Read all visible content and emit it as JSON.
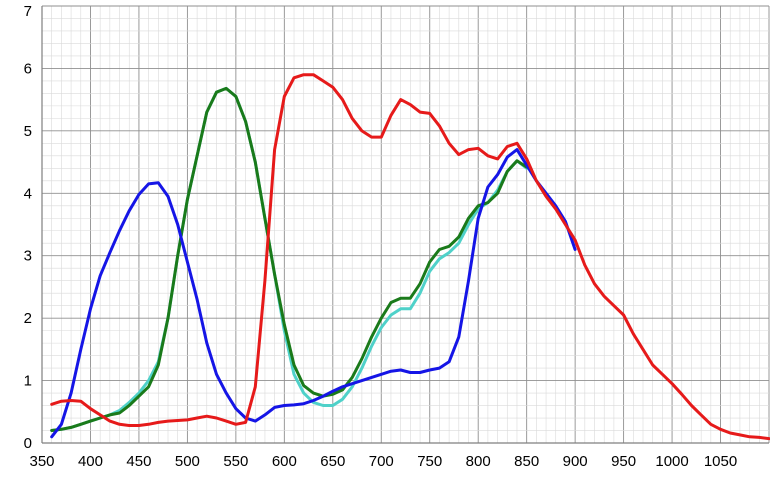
{
  "chart_data": {
    "type": "line",
    "title": "",
    "xlabel": "",
    "ylabel": "",
    "xlim": [
      350,
      1100
    ],
    "ylim": [
      0,
      7
    ],
    "x_ticks": [
      350,
      400,
      450,
      500,
      550,
      600,
      650,
      700,
      750,
      800,
      850,
      900,
      950,
      1000,
      1050
    ],
    "x_tick_labels": [
      "350",
      "400",
      "450",
      "500",
      "550",
      "600",
      "650",
      "700",
      "750",
      "800",
      "850",
      "900",
      "950",
      "1000",
      "1050"
    ],
    "y_ticks": [
      0,
      1,
      2,
      3,
      4,
      5,
      6,
      7
    ],
    "y_tick_labels": [
      "0",
      "1",
      "2",
      "3",
      "4",
      "5",
      "6",
      "7"
    ],
    "grid": true,
    "legend": "none",
    "colors": {
      "blue": "#1515e6",
      "green": "#1a7a1a",
      "cyan": "#4fd1c9",
      "red": "#e61a1a"
    },
    "series": [
      {
        "color": "cyan",
        "x": [
          360,
          370,
          380,
          390,
          400,
          410,
          420,
          430,
          440,
          450,
          460,
          470,
          480,
          490,
          500,
          510,
          520,
          530,
          540,
          550,
          560,
          570,
          580,
          590,
          600,
          610,
          620,
          630,
          640,
          650,
          660,
          670,
          680,
          690,
          700,
          710,
          720,
          730,
          740,
          750,
          760,
          770,
          780,
          790,
          800,
          810,
          820,
          830,
          840,
          850
        ],
        "y": [
          0.2,
          0.22,
          0.25,
          0.3,
          0.35,
          0.4,
          0.45,
          0.52,
          0.65,
          0.8,
          1.0,
          1.3,
          2.0,
          3.0,
          3.9,
          4.6,
          5.3,
          5.62,
          5.68,
          5.55,
          5.15,
          4.5,
          3.6,
          2.7,
          1.8,
          1.1,
          0.8,
          0.65,
          0.6,
          0.6,
          0.7,
          0.9,
          1.2,
          1.55,
          1.85,
          2.05,
          2.15,
          2.15,
          2.4,
          2.75,
          2.95,
          3.05,
          3.2,
          3.5,
          3.75,
          3.85,
          4.05,
          4.35,
          4.52,
          4.4
        ]
      },
      {
        "color": "green",
        "x": [
          360,
          370,
          380,
          390,
          400,
          410,
          420,
          430,
          440,
          450,
          460,
          470,
          480,
          490,
          500,
          510,
          520,
          530,
          540,
          550,
          560,
          570,
          580,
          590,
          600,
          610,
          620,
          630,
          640,
          650,
          660,
          670,
          680,
          690,
          700,
          710,
          720,
          730,
          740,
          750,
          760,
          770,
          780,
          790,
          800,
          810,
          820,
          830,
          840,
          850
        ],
        "y": [
          0.2,
          0.22,
          0.25,
          0.3,
          0.35,
          0.4,
          0.45,
          0.48,
          0.6,
          0.75,
          0.9,
          1.25,
          2.0,
          3.0,
          3.9,
          4.6,
          5.3,
          5.62,
          5.68,
          5.55,
          5.15,
          4.5,
          3.6,
          2.7,
          1.9,
          1.25,
          0.92,
          0.8,
          0.75,
          0.78,
          0.85,
          1.05,
          1.35,
          1.7,
          2.0,
          2.25,
          2.32,
          2.32,
          2.55,
          2.9,
          3.1,
          3.15,
          3.3,
          3.6,
          3.8,
          3.85,
          4.0,
          4.35,
          4.52,
          4.42
        ]
      },
      {
        "color": "blue",
        "x": [
          360,
          370,
          380,
          390,
          400,
          410,
          420,
          430,
          440,
          450,
          460,
          470,
          480,
          490,
          500,
          510,
          520,
          530,
          540,
          550,
          560,
          570,
          580,
          590,
          600,
          610,
          620,
          630,
          640,
          650,
          660,
          670,
          680,
          690,
          700,
          710,
          720,
          730,
          740,
          750,
          760,
          770,
          780,
          790,
          800,
          810,
          820,
          830,
          840,
          850,
          860,
          870,
          880,
          890,
          900
        ],
        "y": [
          0.1,
          0.3,
          0.8,
          1.5,
          2.15,
          2.68,
          3.05,
          3.4,
          3.72,
          3.98,
          4.15,
          4.17,
          3.95,
          3.5,
          2.9,
          2.3,
          1.6,
          1.1,
          0.8,
          0.55,
          0.4,
          0.35,
          0.45,
          0.57,
          0.6,
          0.61,
          0.63,
          0.68,
          0.75,
          0.83,
          0.9,
          0.95,
          1.0,
          1.05,
          1.1,
          1.15,
          1.17,
          1.13,
          1.13,
          1.17,
          1.2,
          1.3,
          1.7,
          2.6,
          3.6,
          4.1,
          4.3,
          4.58,
          4.7,
          4.45,
          4.2,
          4.0,
          3.8,
          3.55,
          3.1
        ]
      },
      {
        "color": "red",
        "x": [
          360,
          370,
          380,
          390,
          400,
          410,
          420,
          430,
          440,
          450,
          460,
          470,
          480,
          490,
          500,
          510,
          520,
          530,
          540,
          550,
          560,
          570,
          580,
          590,
          600,
          610,
          620,
          630,
          640,
          650,
          660,
          670,
          680,
          690,
          700,
          710,
          720,
          730,
          740,
          750,
          760,
          770,
          780,
          790,
          800,
          810,
          820,
          830,
          840,
          850,
          860,
          870,
          880,
          890,
          900,
          910,
          920,
          930,
          940,
          950,
          960,
          970,
          980,
          990,
          1000,
          1010,
          1020,
          1030,
          1040,
          1050,
          1060,
          1070,
          1080,
          1090,
          1100
        ],
        "y": [
          0.62,
          0.67,
          0.68,
          0.67,
          0.55,
          0.45,
          0.35,
          0.3,
          0.28,
          0.28,
          0.3,
          0.33,
          0.35,
          0.36,
          0.37,
          0.4,
          0.43,
          0.4,
          0.35,
          0.3,
          0.33,
          0.9,
          2.6,
          4.7,
          5.55,
          5.85,
          5.9,
          5.9,
          5.8,
          5.7,
          5.5,
          5.2,
          5.0,
          4.9,
          4.9,
          5.25,
          5.5,
          5.42,
          5.3,
          5.28,
          5.08,
          4.8,
          4.62,
          4.7,
          4.72,
          4.6,
          4.55,
          4.75,
          4.8,
          4.55,
          4.2,
          3.95,
          3.75,
          3.5,
          3.25,
          2.85,
          2.55,
          2.35,
          2.2,
          2.05,
          1.75,
          1.5,
          1.25,
          1.1,
          0.95,
          0.78,
          0.6,
          0.45,
          0.3,
          0.22,
          0.16,
          0.13,
          0.1,
          0.09,
          0.07
        ]
      }
    ]
  }
}
